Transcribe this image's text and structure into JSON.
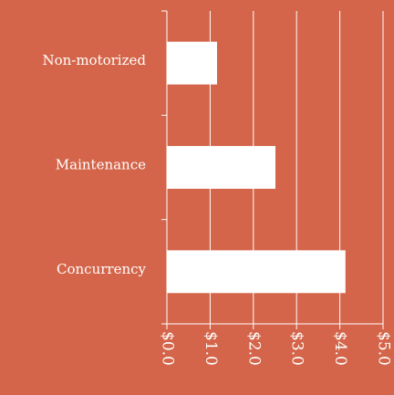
{
  "chart_data": {
    "type": "barh",
    "categories": [
      "Non-motorized",
      "Maintenance",
      "Concurrency"
    ],
    "values": [
      1.16,
      2.51,
      4.13
    ],
    "color": "#ffffff",
    "background": "#d4654a",
    "xlim": [
      0,
      5
    ],
    "xticks": [
      {
        "value": 0,
        "label": "$0.0"
      },
      {
        "value": 1,
        "label": "$1.0"
      },
      {
        "value": 2,
        "label": "$2.0"
      },
      {
        "value": 3,
        "label": "$3.0"
      },
      {
        "value": 4,
        "label": "$4.0"
      },
      {
        "value": 5,
        "label": "$5.0"
      }
    ],
    "grid": true
  }
}
